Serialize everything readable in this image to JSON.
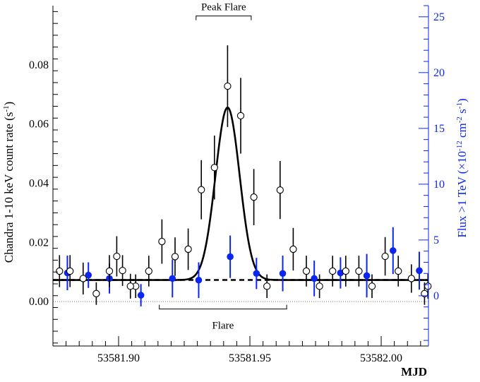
{
  "chart_data": {
    "type": "scatter",
    "xlabel": "MJD",
    "ylabel_left": "Chandra 1-10 keV count rate (s",
    "ylabel_left_sup": "-1",
    "ylabel_left_end": ")",
    "ylabel_right_pre": "Flux >1 TeV (×10",
    "ylabel_right_exp1": "-12",
    "ylabel_right_mid": " cm",
    "ylabel_right_exp2": "-2",
    "ylabel_right_mid2": " s",
    "ylabel_right_exp3": "-1",
    "ylabel_right_end": ")",
    "xlim": [
      53581.875,
      53582.018
    ],
    "ylim_left": [
      -0.015,
      0.1
    ],
    "ylim_right": [
      -4.5,
      26
    ],
    "x_ticks": [
      53581.9,
      53581.95,
      53582.0
    ],
    "x_tick_labels": [
      "53581.90",
      "53581.95",
      "53582.00"
    ],
    "y_left_ticks": [
      0.0,
      0.02,
      0.04,
      0.06,
      0.08
    ],
    "y_left_tick_labels": [
      "0.00",
      "0.02",
      "0.04",
      "0.06",
      "0.08"
    ],
    "y_right_ticks": [
      0,
      5,
      10,
      15,
      20,
      25
    ],
    "y_right_tick_labels": [
      "0",
      "5",
      "10",
      "15",
      "20",
      "25"
    ],
    "colors": {
      "left_axis": "#000000",
      "right_axis": "#0b26f0",
      "fit": "#000000"
    },
    "annotations": {
      "peak_flare": {
        "label": "Peak Flare",
        "x_range": [
          53581.9295,
          53581.9505
        ],
        "y": 0.0965
      },
      "flare": {
        "label": "Flare",
        "x_range": [
          53581.9155,
          53581.964
        ],
        "y": -0.0025
      }
    },
    "series": [
      {
        "name": "Chandra",
        "axis": "left",
        "marker": "open-circle",
        "x": [
          53581.8815,
          53581.8865,
          53581.8915,
          53581.8965,
          53581.9015,
          53581.9065,
          53581.9115,
          53581.9165,
          53581.9215,
          53581.9265,
          53581.9315,
          53581.9365,
          53581.9415,
          53581.9465,
          53581.9515,
          53581.9565,
          53581.9615,
          53581.9665,
          53581.9715,
          53581.9765,
          53581.9815,
          53581.9865,
          53581.9915,
          53581.9965,
          53582.0015,
          53582.0065,
          53582.0115,
          53582.0165
        ],
        "y": [
          0.0103,
          0.0078,
          0.0027,
          0.0103,
          0.0105,
          0.0052,
          0.0103,
          0.0203,
          0.0152,
          0.0177,
          0.0378,
          0.0453,
          0.0728,
          0.0628,
          0.0353,
          0.0052,
          0.0377,
          0.0177,
          0.0103,
          0.0052,
          0.0103,
          0.0103,
          0.0103,
          0.0052,
          0.0153,
          0.0103,
          0.0078,
          0.0027
        ],
        "err": [
          0.0054,
          0.0054,
          0.0038,
          0.0054,
          0.0052,
          0.004,
          0.0052,
          0.0075,
          0.0065,
          0.007,
          0.01,
          0.0108,
          0.0138,
          0.0128,
          0.0095,
          0.004,
          0.0098,
          0.0072,
          0.0052,
          0.004,
          0.0052,
          0.0052,
          0.0052,
          0.004,
          0.0065,
          0.0052,
          0.0048,
          0.0038
        ],
        "x_extra": [
          53581.8775,
          53581.8993,
          53581.9045,
          53582.0178
        ],
        "y_extra": [
          0.0103,
          0.0153,
          0.0052,
          0.0052
        ],
        "err_extra": [
          0.0054,
          0.0068,
          0.0042,
          0.0042
        ]
      },
      {
        "name": "TeV",
        "axis": "right",
        "marker": "filled-circle",
        "color": "#0b26f0",
        "x": [
          53581.8805,
          53581.8885,
          53581.8965,
          53581.9085,
          53581.9205,
          53581.9305,
          53581.9425,
          53581.9525,
          53581.9625,
          53581.9745,
          53581.9845,
          53581.9945,
          53582.0045,
          53582.0145
        ],
        "y": [
          2.05,
          1.85,
          1.55,
          0.05,
          1.55,
          1.4,
          3.5,
          2.0,
          2.0,
          1.55,
          2.05,
          1.8,
          4.05,
          2.25
        ],
        "err": [
          1.55,
          1.15,
          1.35,
          1.0,
          1.7,
          1.6,
          1.9,
          1.4,
          1.6,
          1.6,
          1.4,
          1.95,
          2.1,
          1.7
        ]
      }
    ],
    "fit": {
      "name": "Gaussian fit",
      "baseline": 0.0073,
      "amplitude": 0.0583,
      "mean": 53581.9415,
      "sigma": 0.0046
    },
    "baseline_dashed_y": 0.0073,
    "zero_dotted_y": 0.0
  }
}
